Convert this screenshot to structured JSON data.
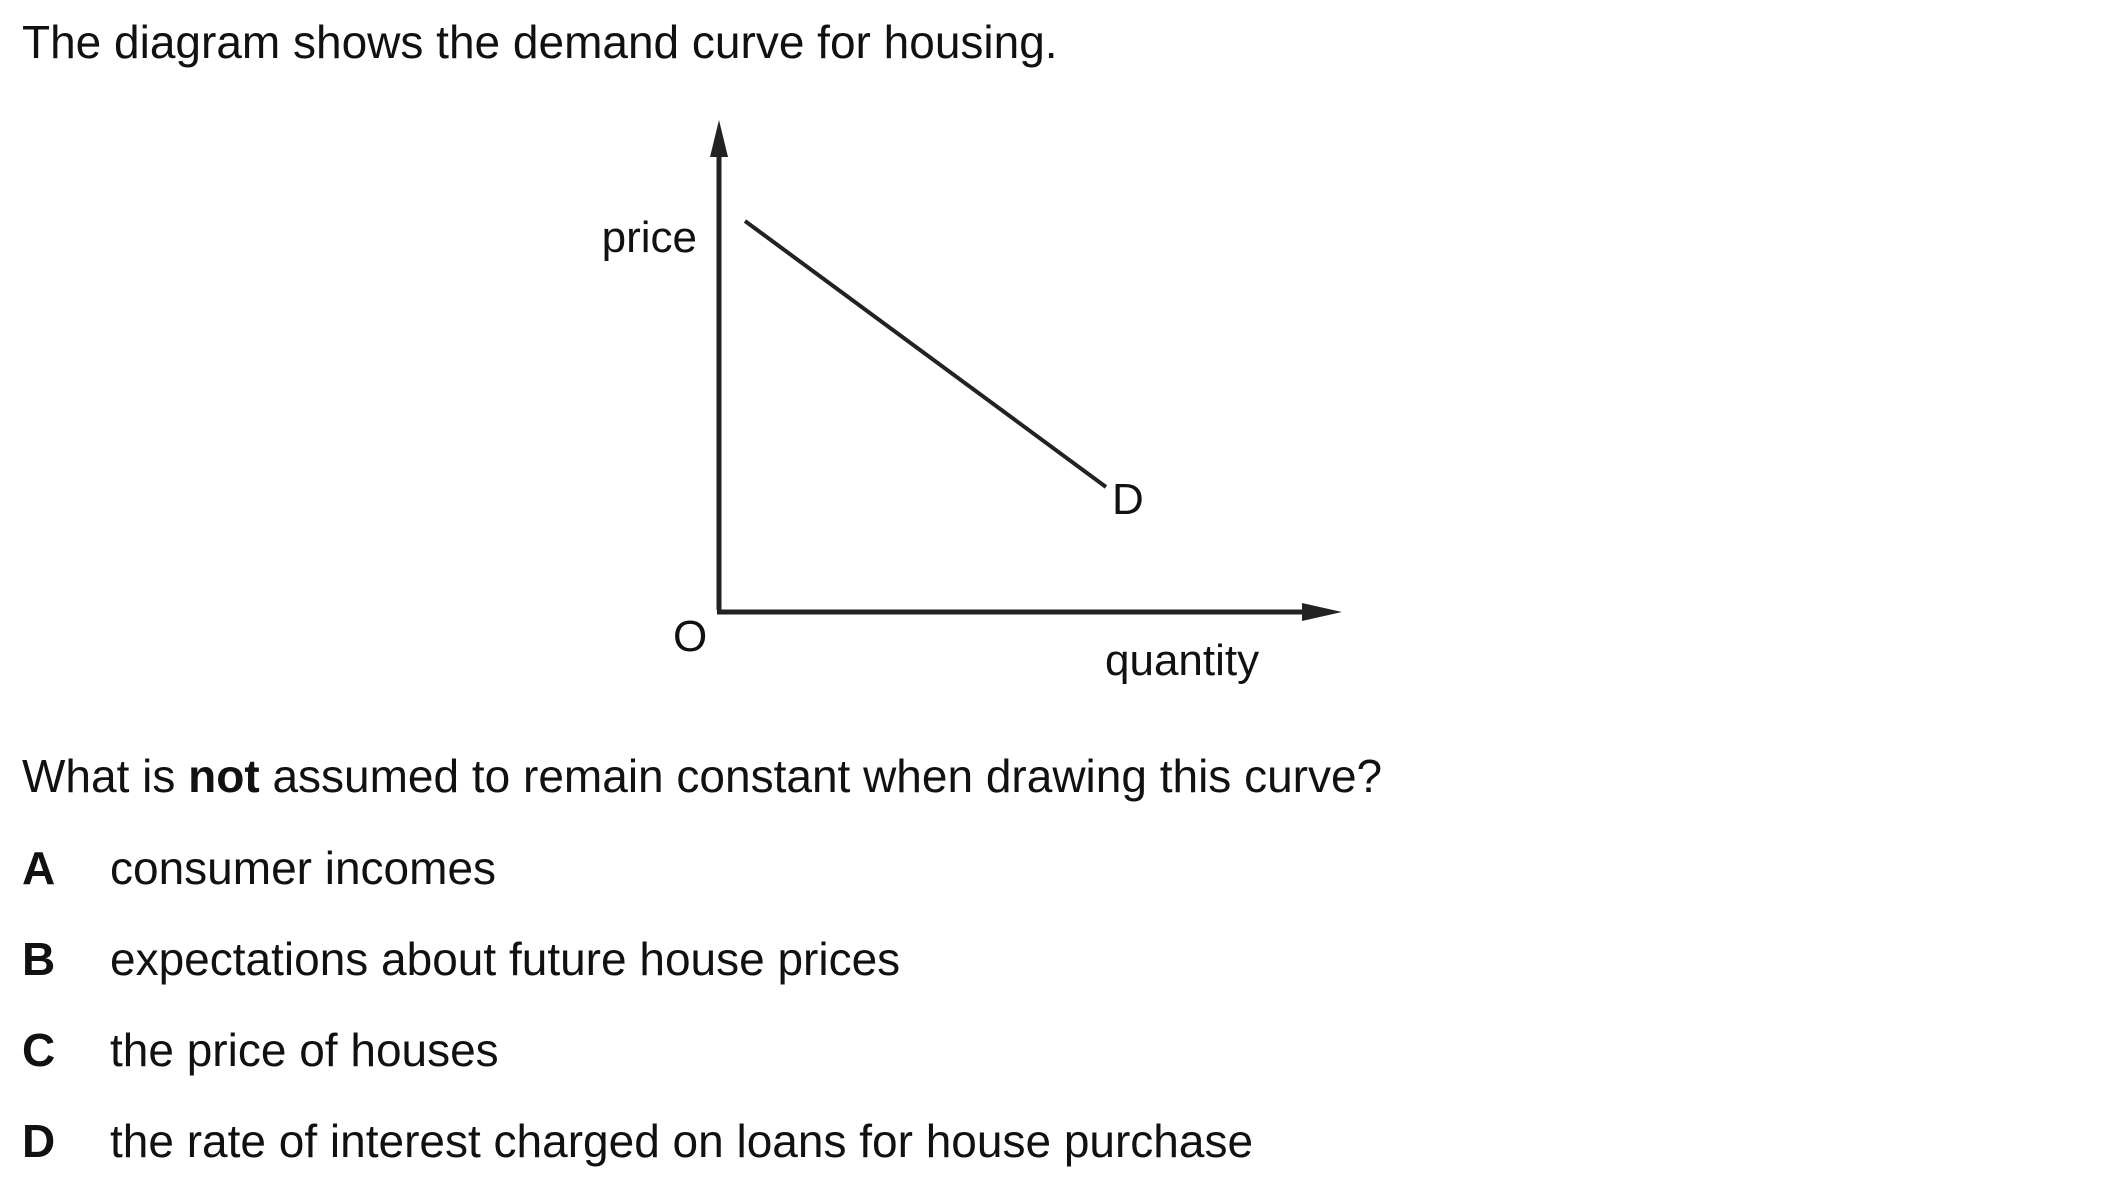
{
  "intro_text": "The diagram shows the demand curve for housing.",
  "diagram": {
    "y_axis_label": "price",
    "x_axis_label": "quantity",
    "origin_label": "O",
    "curve_label": "D"
  },
  "question": {
    "part1": "What is ",
    "emphasis": "not",
    "part2": " assumed to remain constant when drawing this curve?"
  },
  "options": [
    {
      "letter": "A",
      "text": "consumer incomes"
    },
    {
      "letter": "B",
      "text": "expectations about future house prices"
    },
    {
      "letter": "C",
      "text": "the price of houses"
    },
    {
      "letter": "D",
      "text": "the rate of interest charged on loans for house purchase"
    }
  ]
}
